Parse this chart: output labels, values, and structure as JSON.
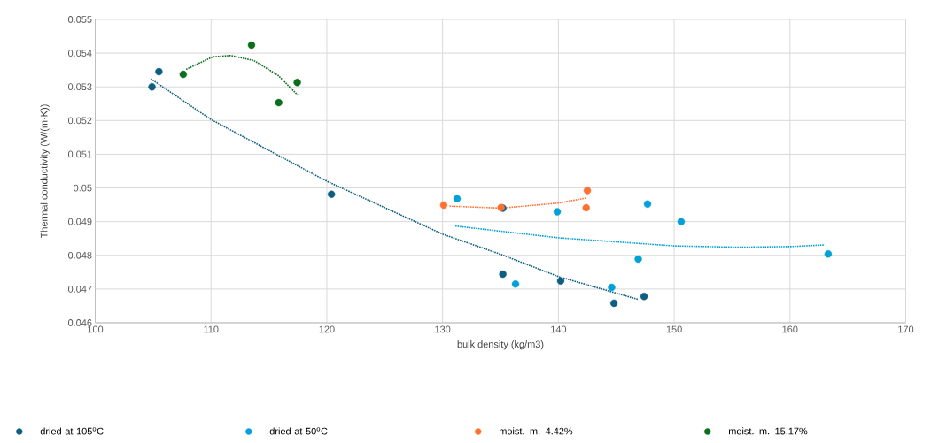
{
  "chart_data": {
    "type": "scatter",
    "xlabel": "bulk density (kg/m3)",
    "ylabel": "Thermal conductivity (W/(m·K))",
    "xlim": [
      100,
      170
    ],
    "xticks": [
      100,
      110,
      120,
      130,
      140,
      150,
      160,
      170
    ],
    "ylim": [
      0.046,
      0.055
    ],
    "yticks": [
      0.046,
      0.047,
      0.048,
      0.049,
      0.05,
      0.051,
      0.052,
      0.053,
      0.054,
      0.055
    ],
    "grid": true,
    "legend": "bottom",
    "marker": "circle",
    "series": [
      {
        "name": "dried at 105$^{o}$C",
        "color": "#0e5e82",
        "x": [
          104.9,
          105.5,
          120.4,
          135.2,
          135.2,
          140.2,
          144.8,
          147.4
        ],
        "values": [
          0.053,
          0.05345,
          0.04981,
          0.0494,
          0.04744,
          0.04724,
          0.04658,
          0.04678
        ]
      },
      {
        "name": "dried at 50$^{o}$C",
        "color": "#00a0d8",
        "x": [
          131.25,
          136.3,
          139.9,
          144.6,
          146.9,
          147.7,
          150.6,
          163.3
        ],
        "values": [
          0.04968,
          0.04715,
          0.04929,
          0.04705,
          0.04789,
          0.04952,
          0.049,
          0.04804
        ]
      },
      {
        "name": "moist. m. 4.42%",
        "color": "#ff7131",
        "x": [
          130.1,
          135.05,
          142.5,
          142.4
        ],
        "values": [
          0.04949,
          0.04942,
          0.04992,
          0.04941
        ]
      },
      {
        "name": "moist. m. 15.17%",
        "color": "#0b6e1a",
        "x": [
          107.6,
          113.5,
          115.85,
          117.45
        ],
        "values": [
          0.05337,
          0.05424,
          0.05253,
          0.05313
        ]
      },
      {
        "type": "line",
        "line_style": "dotted",
        "marker": "none",
        "color": "#0e5e82",
        "x": [
          104.8,
          110,
          120,
          130,
          135.1,
          140,
          146.9
        ],
        "values": [
          0.05324,
          0.05203,
          0.0502,
          0.04863,
          0.04802,
          0.04737,
          0.04669
        ]
      },
      {
        "type": "line",
        "line_style": "dotted",
        "marker": "none",
        "color": "#00a0d8",
        "x": [
          131.1,
          140,
          150,
          155.6,
          160.1,
          163.0
        ],
        "values": [
          0.04887,
          0.04852,
          0.04828,
          0.04824,
          0.04826,
          0.04831
        ]
      },
      {
        "type": "line",
        "line_style": "dotted",
        "marker": "none",
        "color": "#ff7131",
        "x": [
          130.6,
          135.05,
          140,
          142.4
        ],
        "values": [
          0.04946,
          0.0494,
          0.04955,
          0.0497
        ]
      },
      {
        "type": "line",
        "line_style": "dotted",
        "marker": "none",
        "color": "#0b6e1a",
        "x": [
          107.85,
          110.15,
          111.7,
          113.7,
          115.8,
          117.5
        ],
        "values": [
          0.05352,
          0.05389,
          0.05393,
          0.05378,
          0.05334,
          0.05275
        ]
      }
    ]
  }
}
